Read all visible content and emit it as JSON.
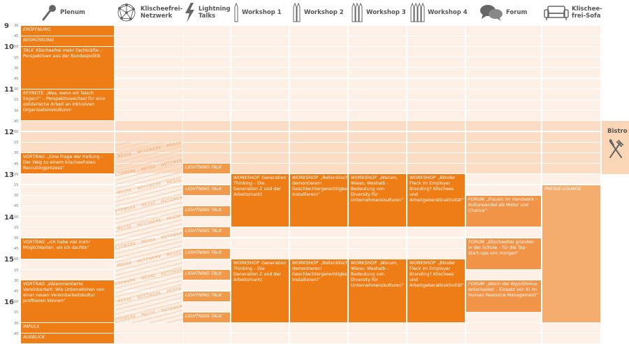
{
  "columns": [
    {
      "label": "Plenum",
      "color": "#ef7d16",
      "events": [
        {
          "type": "ERÖFFNUNG",
          "start": "09:30",
          "end": "09:45"
        },
        {
          "type": "BEGRÜSSUNG",
          "start": "09:45",
          "end": "10:00"
        },
        {
          "type": "TALK",
          "text": "Klischeefrei mehr Fachkräfte – Perspektiven aus der Bundespolitik",
          "start": "10:00",
          "end": "11:00"
        },
        {
          "type": "KEYNOTE",
          "text": "„Was, wenn wir falsch liegen?“ – Perspektivwechsel für eine solidarische Arbeit an inklusiven Organisationskulturen",
          "start": "11:00",
          "end": "11:45"
        },
        {
          "type": "VORTRAG",
          "text": "„Eine Frage der Haltung – Der Weg zu einem klischeefreien Recruitingprozess“",
          "start": "12:30",
          "end": "13:00"
        },
        {
          "type": "VORTRAG",
          "text": "„Ich habe viel mehr Möglichkeiten, als ich dachte“",
          "start": "14:30",
          "end": "15:00"
        },
        {
          "type": "VORTRAG",
          "text": "„Väterorientierte Vereinbarkeit: Wie Unternehmen von einer neuen Vereinbarkeitskultur profitieren können“",
          "start": "15:30",
          "end": "16:30"
        },
        {
          "type": "IMPULS",
          "start": "16:30",
          "end": "16:45"
        },
        {
          "type": "AUSBLICK",
          "start": "16:45",
          "end": "17:00"
        }
      ]
    },
    {
      "label": "Klischeefrei-\nNetzwerk",
      "area": {
        "start": "12:15",
        "end": "16:30",
        "labels": [
          "MESSE",
          "NETZWERK"
        ]
      },
      "events": []
    },
    {
      "label": "Lightning\nTalks",
      "color": "#f29a4c",
      "events": [
        {
          "type": "LIGHTNING TALK",
          "start": "12:45",
          "end": "13:00"
        },
        {
          "type": "LIGHTNING TALK",
          "start": "13:15",
          "end": "13:30"
        },
        {
          "type": "LIGHTNING TALK",
          "start": "13:45",
          "end": "14:00"
        },
        {
          "type": "LIGHTNING TALK",
          "start": "14:15",
          "end": "14:30"
        },
        {
          "type": "LIGHTNING TALK",
          "start": "14:45",
          "end": "15:00"
        },
        {
          "type": "LIGHTNING TALK",
          "start": "15:15",
          "end": "15:30"
        },
        {
          "type": "LIGHTNING TALK",
          "start": "15:45",
          "end": "16:00"
        },
        {
          "type": "LIGHTNING TALK",
          "start": "16:15",
          "end": "16:30"
        }
      ]
    },
    {
      "label": "Workshop 1",
      "color": "#ef7d16",
      "events": [
        {
          "type": "WORKSHOP",
          "text": "Generation Thinking – Die Generation Z und der Arbeitsmarkt",
          "start": "13:00",
          "end": "14:15"
        },
        {
          "type": "WORKSHOP",
          "text": "Generation Thinking – Die Generation Z und der Arbeitsmarkt",
          "start": "15:00",
          "end": "16:30"
        }
      ]
    },
    {
      "label": "Workshop 2",
      "color": "#ef7d16",
      "events": [
        {
          "type": "WORKSHOP",
          "text": "„Rollenklischees demontieren! Geschlechtergerechtigkeit installieren!“",
          "start": "13:00",
          "end": "14:15"
        },
        {
          "type": "WORKSHOP",
          "text": "„Rollenklischees demontieren! Geschlechtergerechtigkeit installieren!“",
          "start": "15:00",
          "end": "16:30"
        }
      ]
    },
    {
      "label": "Workshop 3",
      "color": "#ef7d16",
      "events": [
        {
          "type": "WORKSHOP",
          "text": "„Warum, Wieso, Weshalb – Bedeutung von Diversity für Unternehmenskulturen“",
          "start": "13:00",
          "end": "14:15"
        },
        {
          "type": "WORKSHOP",
          "text": "„Warum, Wieso, Weshalb – Bedeutung von Diversity für Unternehmenskulturen“",
          "start": "15:00",
          "end": "16:30"
        }
      ]
    },
    {
      "label": "Workshop 4",
      "color": "#ef7d16",
      "events": [
        {
          "type": "WORKSHOP",
          "text": "„Blinder Fleck im Employer Branding? Klischees und Arbeitgeberattraktivität“",
          "start": "13:00",
          "end": "14:15"
        },
        {
          "type": "WORKSHOP",
          "text": "„Blinder Fleck im Employer Branding? Klischees und Arbeitgeberattraktivität“",
          "start": "15:00",
          "end": "16:30"
        }
      ]
    },
    {
      "label": "Forum",
      "color": "#f29447",
      "events": [
        {
          "type": "FORUM",
          "text": "„Frauen im Handwerk – Kulturwandel als Motor und Chance“",
          "start": "13:30",
          "end": "14:15"
        },
        {
          "type": "FORUM",
          "text": "„Klischeefrei gründen in der Schule – für die Top-Start-ups von morgen“",
          "start": "14:30",
          "end": "15:15"
        },
        {
          "type": "FORUM",
          "text": "„Wenn der Algorithmus entscheidet – Einsatz von KI im Human Resource Management“",
          "start": "15:30",
          "end": "16:15"
        }
      ]
    },
    {
      "label": "Klischee-\nfrei-Sofa",
      "color": "#f5ad6e",
      "events": [
        {
          "type": "PRESSE-LOUNGE",
          "start": "13:15",
          "end": "16:30"
        }
      ]
    }
  ],
  "bistro": {
    "label": "Bistro",
    "start": "11:45",
    "end": "13:00"
  },
  "break": {
    "start": "11:45",
    "end": "13:00"
  },
  "time_rows": [
    {
      "hour": "9",
      "minute": "30"
    },
    {
      "minute": "45"
    },
    {
      "hour": "10",
      "minute": "00"
    },
    {
      "minute": "15"
    },
    {
      "minute": "30"
    },
    {
      "minute": "45"
    },
    {
      "hour": "11",
      "minute": "00"
    },
    {
      "minute": "15"
    },
    {
      "minute": "30"
    },
    {
      "minute": "45"
    },
    {
      "hour": "12",
      "minute": "00"
    },
    {
      "minute": "15"
    },
    {
      "minute": "30"
    },
    {
      "minute": "45"
    },
    {
      "hour": "13",
      "minute": "00"
    },
    {
      "minute": "15"
    },
    {
      "minute": "30"
    },
    {
      "minute": "45"
    },
    {
      "hour": "14",
      "minute": "00"
    },
    {
      "minute": "15"
    },
    {
      "minute": "30"
    },
    {
      "minute": "45"
    },
    {
      "hour": "15",
      "minute": "00"
    },
    {
      "minute": "15"
    },
    {
      "minute": "30"
    },
    {
      "minute": "45"
    },
    {
      "hour": "16",
      "minute": "00"
    },
    {
      "minute": "15"
    },
    {
      "minute": "30"
    },
    {
      "minute": "45"
    }
  ]
}
